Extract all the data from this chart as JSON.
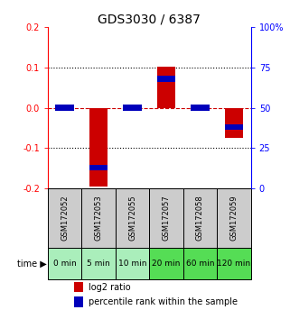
{
  "title": "GDS3030 / 6387",
  "samples": [
    "GSM172052",
    "GSM172053",
    "GSM172055",
    "GSM172057",
    "GSM172058",
    "GSM172059"
  ],
  "time_labels": [
    "0 min",
    "5 min",
    "10 min",
    "20 min",
    "60 min",
    "120 min"
  ],
  "log2_ratios": [
    0.0,
    -0.195,
    0.0,
    0.101,
    0.0,
    -0.075
  ],
  "percentile_ranks": [
    50.0,
    13.0,
    50.0,
    68.0,
    50.0,
    38.0
  ],
  "bar_width": 0.55,
  "ylim": [
    -0.2,
    0.2
  ],
  "yticks_left": [
    -0.2,
    -0.1,
    0.0,
    0.1,
    0.2
  ],
  "yticks_right_labels": [
    "0",
    "25",
    "50",
    "75",
    "100%"
  ],
  "yticks_right_vals": [
    -0.2,
    -0.1,
    0.0,
    0.1,
    0.2
  ],
  "red_color": "#cc0000",
  "blue_color": "#0000bb",
  "dashed_zero_color": "#cc0000",
  "bg_plot": "#ffffff",
  "bg_sample_label": "#cccccc",
  "bg_time_light": "#aaeebb",
  "bg_time_dark": "#55dd55",
  "title_fontsize": 10,
  "tick_fontsize": 7,
  "legend_fontsize": 7,
  "sample_fontsize": 6,
  "time_fontsize": 6.5
}
